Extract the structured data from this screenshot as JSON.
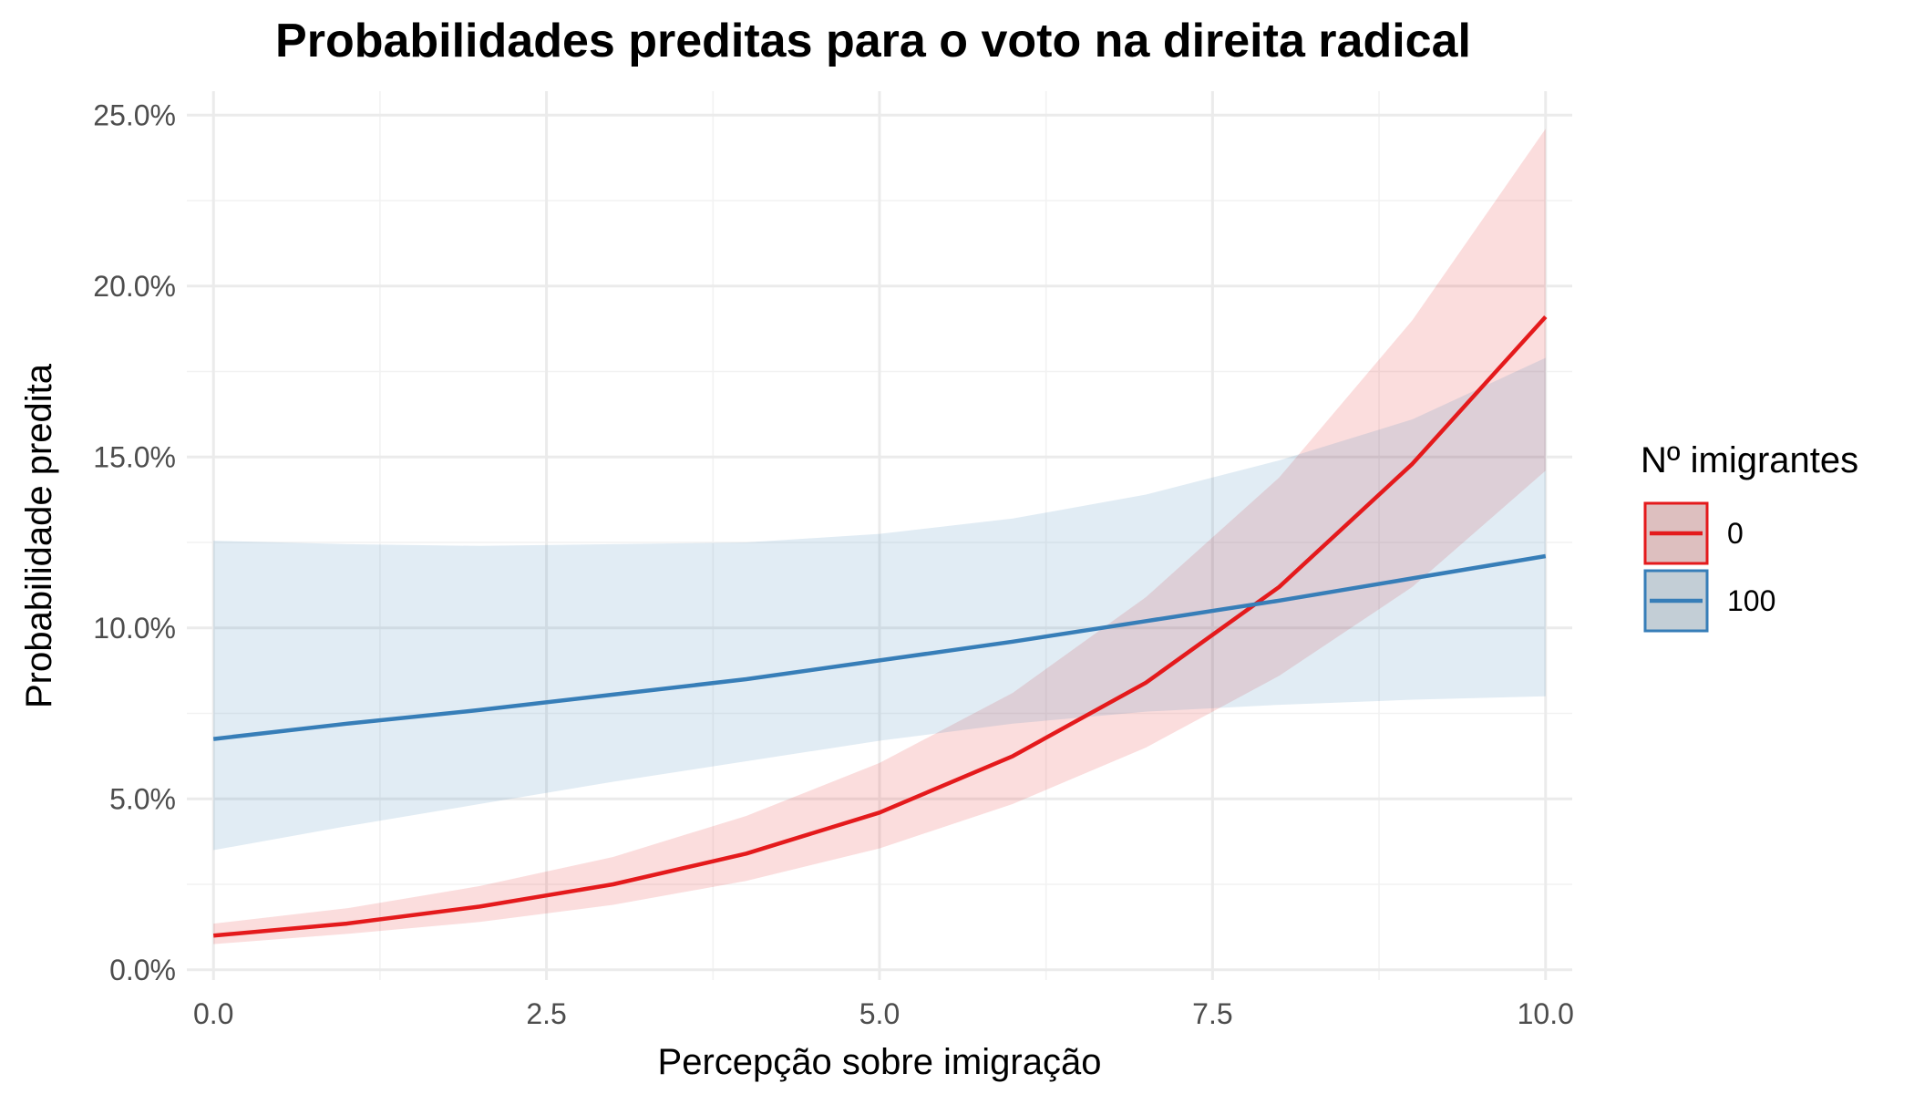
{
  "chart_data": {
    "type": "line",
    "title": "Probabilidades preditas para o voto na direita radical",
    "xlabel": "Percepção sobre imigração",
    "ylabel": "Probabilidade predita",
    "xlim": [
      -0.2,
      10.2
    ],
    "ylim": [
      -0.3,
      25.7
    ],
    "x_ticks": [
      0.0,
      2.5,
      5.0,
      7.5,
      10.0
    ],
    "x_tick_labels": [
      "0.0",
      "2.5",
      "5.0",
      "7.5",
      "10.0"
    ],
    "y_ticks": [
      0,
      5,
      10,
      15,
      20,
      25
    ],
    "y_tick_labels": [
      "0.0%",
      "5.0%",
      "10.0%",
      "15.0%",
      "20.0%",
      "25.0%"
    ],
    "grid": true,
    "legend": {
      "title": "Nº imigrantes",
      "position": "right"
    },
    "x": [
      0,
      1,
      2,
      3,
      4,
      5,
      6,
      7,
      8,
      9,
      10
    ],
    "series": [
      {
        "name": "0",
        "color": "#e41a1c",
        "fill": "#f8c9ca",
        "values": [
          1.0,
          1.35,
          1.85,
          2.5,
          3.4,
          4.6,
          6.25,
          8.4,
          11.2,
          14.8,
          19.1
        ],
        "lower": [
          0.75,
          1.05,
          1.4,
          1.9,
          2.6,
          3.55,
          4.85,
          6.5,
          8.6,
          11.2,
          14.6
        ],
        "upper": [
          1.35,
          1.8,
          2.45,
          3.3,
          4.5,
          6.05,
          8.1,
          10.9,
          14.4,
          19.0,
          24.6
        ]
      },
      {
        "name": "100",
        "color": "#377eb8",
        "fill": "#c9ddee",
        "values": [
          6.75,
          7.2,
          7.6,
          8.05,
          8.5,
          9.05,
          9.6,
          10.2,
          10.8,
          11.45,
          12.1
        ],
        "lower": [
          3.5,
          4.2,
          4.85,
          5.5,
          6.1,
          6.7,
          7.2,
          7.55,
          7.75,
          7.9,
          8.0
        ],
        "upper": [
          12.55,
          12.45,
          12.4,
          12.45,
          12.5,
          12.75,
          13.2,
          13.9,
          14.9,
          16.1,
          17.9
        ]
      }
    ]
  }
}
